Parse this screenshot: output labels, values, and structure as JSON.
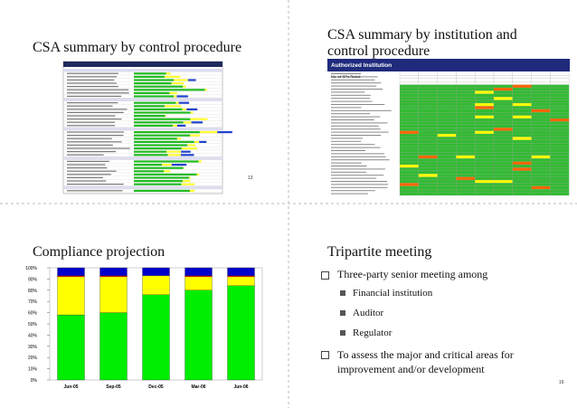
{
  "slides": [
    {
      "title": "CSA summary by control procedure",
      "page": "13"
    },
    {
      "title": "CSA summary by institution and control procedure",
      "table_header": "Authorized Institution",
      "row_label": "No. of CPs Rated"
    },
    {
      "title": "Compliance projection"
    },
    {
      "title": "Tripartite meeting",
      "page": "16",
      "bullets": [
        {
          "text": "Three-party senior meeting among",
          "sub": [
            "Financial institution",
            "Auditor",
            "Regulator"
          ]
        },
        {
          "text": "To assess the major and critical areas for improvement and/or development"
        }
      ]
    }
  ],
  "chart_data": {
    "type": "bar",
    "stacked": true,
    "categories": [
      "Jun-05",
      "Sep-05",
      "Dec-05",
      "Mar-06",
      "Jun-06"
    ],
    "series": [
      {
        "color": "#00ee00",
        "values": [
          58,
          60,
          76,
          80,
          84
        ]
      },
      {
        "color": "#ffff00",
        "values": [
          34,
          32,
          17,
          12,
          8
        ]
      },
      {
        "color": "#ff0000",
        "values": [
          1,
          1,
          0,
          1,
          1
        ]
      },
      {
        "color": "#0000cc",
        "values": [
          7,
          7,
          7,
          7,
          7
        ]
      }
    ],
    "ylim": [
      0,
      100
    ],
    "yticks": [
      {
        "value": 0,
        "label": "0%"
      },
      {
        "value": 10,
        "label": "10%"
      },
      {
        "value": 20,
        "label": "20%"
      },
      {
        "value": 30,
        "label": "30%"
      },
      {
        "value": 40,
        "label": "40%"
      },
      {
        "value": 50,
        "label": "50%"
      },
      {
        "value": 60,
        "label": "60%"
      },
      {
        "value": 70,
        "label": "70%"
      },
      {
        "value": 80,
        "label": "80%"
      },
      {
        "value": 90,
        "label": "90%"
      },
      {
        "value": 100,
        "label": "100%"
      }
    ],
    "grid": false
  }
}
